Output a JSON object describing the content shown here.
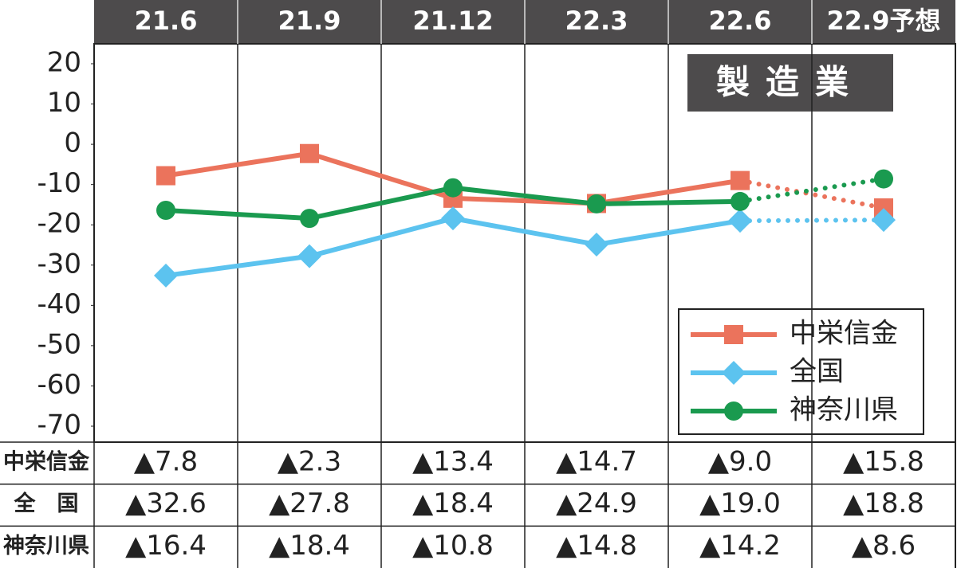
{
  "chart_data": {
    "type": "line",
    "title": "製造業",
    "categories": [
      "21.6",
      "21.9",
      "21.12",
      "22.3",
      "22.6",
      "22.9予想"
    ],
    "series": [
      {
        "name": "中栄信金",
        "color": "#eb735c",
        "marker": "square",
        "values": [
          -7.8,
          -2.3,
          -13.4,
          -14.7,
          -9.0,
          -15.8
        ],
        "value_labels": [
          "▲7.8",
          "▲2.3",
          "▲13.4",
          "▲14.7",
          "▲9.0",
          "▲15.8"
        ]
      },
      {
        "name": "全国",
        "color": "#5cc3ef",
        "marker": "diamond",
        "values": [
          -32.6,
          -27.8,
          -18.4,
          -24.9,
          -19.0,
          -18.8
        ],
        "value_labels": [
          "▲32.6",
          "▲27.8",
          "▲18.4",
          "▲24.9",
          "▲19.0",
          "▲18.8"
        ]
      },
      {
        "name": "神奈川県",
        "color": "#1a9a4f",
        "marker": "circle",
        "values": [
          -16.4,
          -18.4,
          -10.8,
          -14.8,
          -14.2,
          -8.6
        ],
        "value_labels": [
          "▲16.4",
          "▲18.4",
          "▲10.8",
          "▲14.8",
          "▲14.2",
          "▲8.6"
        ]
      }
    ],
    "ylim": [
      -70,
      20
    ],
    "yticks": [
      20,
      10,
      0,
      -10,
      -20,
      -30,
      -40,
      -50,
      -60,
      -70
    ],
    "last_segment_style": "dotted",
    "legend": "lower right"
  },
  "table": {
    "row_labels": [
      "中栄信金",
      "全　国",
      "神奈川県"
    ]
  }
}
